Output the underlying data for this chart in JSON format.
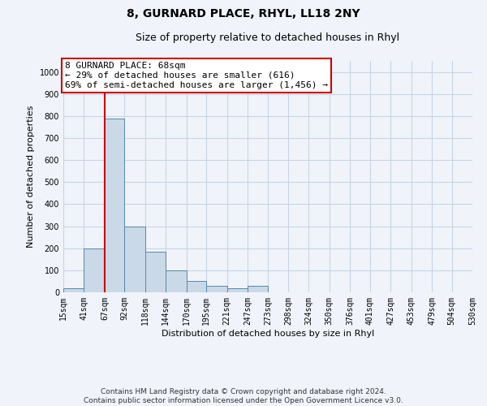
{
  "title": "8, GURNARD PLACE, RHYL, LL18 2NY",
  "subtitle": "Size of property relative to detached houses in Rhyl",
  "xlabel": "Distribution of detached houses by size in Rhyl",
  "ylabel": "Number of detached properties",
  "footer_line1": "Contains HM Land Registry data © Crown copyright and database right 2024.",
  "footer_line2": "Contains public sector information licensed under the Open Government Licence v3.0.",
  "annotation_line0": "8 GURNARD PLACE: 68sqm",
  "annotation_line1": "← 29% of detached houses are smaller (616)",
  "annotation_line2": "69% of semi-detached houses are larger (1,456) →",
  "bar_left_edges": [
    15,
    41,
    67,
    92,
    118,
    144,
    170,
    195,
    221,
    247,
    273,
    298,
    324,
    350,
    376,
    401,
    427,
    453,
    479,
    504
  ],
  "bar_widths": [
    26,
    26,
    25,
    26,
    26,
    26,
    25,
    26,
    26,
    26,
    25,
    26,
    26,
    26,
    25,
    26,
    26,
    26,
    25,
    26
  ],
  "bar_heights": [
    20,
    200,
    790,
    300,
    185,
    100,
    50,
    30,
    20,
    30,
    0,
    0,
    0,
    0,
    0,
    0,
    0,
    0,
    0,
    0
  ],
  "bar_color": "#c9d9e8",
  "bar_edge_color": "#5588aa",
  "red_line_x": 67,
  "red_color": "#cc0000",
  "ylim": [
    0,
    1050
  ],
  "yticks": [
    0,
    100,
    200,
    300,
    400,
    500,
    600,
    700,
    800,
    900,
    1000
  ],
  "xtick_labels": [
    "15sqm",
    "41sqm",
    "67sqm",
    "92sqm",
    "118sqm",
    "144sqm",
    "170sqm",
    "195sqm",
    "221sqm",
    "247sqm",
    "273sqm",
    "298sqm",
    "324sqm",
    "350sqm",
    "376sqm",
    "401sqm",
    "427sqm",
    "453sqm",
    "479sqm",
    "504sqm",
    "530sqm"
  ],
  "grid_color": "#c8d4e4",
  "background_color": "#f0f4fa",
  "title_fontsize": 10,
  "subtitle_fontsize": 9,
  "axis_label_fontsize": 8,
  "tick_fontsize": 7,
  "annotation_fontsize": 8,
  "footer_fontsize": 6.5
}
